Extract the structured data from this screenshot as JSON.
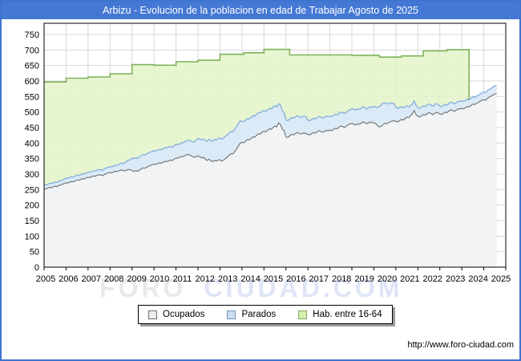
{
  "title_bar": {
    "text": "Arbizu - Evolucion de la poblacion en edad de Trabajar Agosto de 2025",
    "bg_color": "#4478d4",
    "text_color": "#ffffff"
  },
  "watermark": {
    "part1": "FORO",
    "part2": "CIUDAD.COM"
  },
  "footer": {
    "url": "http://www.foro-ciudad.com"
  },
  "legend": {
    "items": [
      {
        "label": "Ocupados",
        "fill": "#ececec",
        "border": "#707070"
      },
      {
        "label": "Parados",
        "fill": "#c9def2",
        "border": "#7a93ae"
      },
      {
        "label": "Hab. entre 16-64",
        "fill": "#d6f0ad",
        "border": "#84a969"
      }
    ]
  },
  "chart_data": {
    "type": "area",
    "title": "Arbizu - Evolucion de la poblacion en edad de Trabajar Agosto de 2025",
    "xlabel": "",
    "ylabel": "",
    "x_axis": {
      "labels": [
        "2005",
        "2006",
        "2007",
        "2008",
        "2009",
        "2010",
        "2011",
        "2012",
        "2013",
        "2014",
        "2015",
        "2016",
        "2017",
        "2018",
        "2019",
        "2020",
        "2021",
        "2022",
        "2023",
        "2024",
        "2025"
      ],
      "range": [
        2005,
        2026
      ]
    },
    "y_axis": {
      "min": 0,
      "max": 750,
      "step": 50,
      "tick_labels": [
        "0",
        "50",
        "100",
        "150",
        "200",
        "250",
        "300",
        "350",
        "400",
        "450",
        "500",
        "550",
        "600",
        "650",
        "700",
        "750"
      ]
    },
    "grid": true,
    "grid_color": "#d8d8d8",
    "legend_position": "bottom",
    "series": [
      {
        "name": "Hab. entre 16-64",
        "render": "step",
        "line_color": "#7fb25c",
        "fill_color": "#e3f5c9",
        "note": "annual padron step values, series ends April 2024",
        "steps": [
          [
            2005.0,
            597
          ],
          [
            2006.0,
            609
          ],
          [
            2007.0,
            613
          ],
          [
            2008.0,
            623
          ],
          [
            2009.0,
            653
          ],
          [
            2010.0,
            651
          ],
          [
            2011.0,
            662
          ],
          [
            2012.0,
            667
          ],
          [
            2013.0,
            686
          ],
          [
            2014.08,
            691
          ],
          [
            2015.0,
            702
          ],
          [
            2016.17,
            684
          ],
          [
            2019.0,
            683
          ],
          [
            2020.25,
            677
          ],
          [
            2021.25,
            681
          ],
          [
            2022.25,
            697
          ],
          [
            2023.33,
            701
          ],
          [
            2024.33,
            701
          ]
        ]
      },
      {
        "name": "Parados",
        "render": "monthly",
        "note": "line is Ocupados+Parados (stacked top of unemployment band), monthly Jan 2005 - Aug 2025",
        "line_color": "#8ab2de",
        "fill_color": "#d9e8f8",
        "start_year": 2005,
        "values": [
          266,
          265,
          267,
          270,
          270,
          272,
          274,
          273,
          277,
          278,
          281,
          284,
          287,
          286,
          290,
          291,
          290,
          294,
          297,
          295,
          298,
          301,
          300,
          304,
          306,
          306,
          308,
          310,
          310,
          313,
          315,
          314,
          312,
          317,
          320,
          322,
          324,
          323,
          326,
          329,
          328,
          332,
          335,
          335,
          336,
          341,
          345,
          345,
          352,
          350,
          353,
          351,
          356,
          359,
          363,
          361,
          365,
          368,
          371,
          373,
          375,
          375,
          377,
          380,
          378,
          382,
          386,
          384,
          388,
          389,
          387,
          392,
          396,
          395,
          397,
          401,
          401,
          405,
          409,
          408,
          407,
          404,
          404,
          409,
          414,
          413,
          410,
          413,
          408,
          406,
          412,
          408,
          406,
          412,
          410,
          414,
          416,
          413,
          417,
          422,
          427,
          432,
          438,
          436,
          444,
          452,
          462,
          472,
          470,
          469,
          474,
          479,
          478,
          483,
          488,
          487,
          493,
          498,
          497,
          503,
          504,
          502,
          507,
          512,
          510,
          516,
          520,
          517,
          527,
          522,
          505,
          498,
          475,
          472,
          477,
          482,
          480,
          484,
          488,
          486,
          483,
          485,
          487,
          484,
          474,
          472,
          476,
          480,
          478,
          482,
          486,
          484,
          481,
          483,
          487,
          486,
          487,
          485,
          489,
          493,
          491,
          496,
          500,
          498,
          495,
          500,
          504,
          507,
          511,
          509,
          506,
          510,
          508,
          512,
          517,
          515,
          510,
          513,
          517,
          515,
          518,
          517,
          514,
          518,
          522,
          529,
          530,
          526,
          528,
          529,
          529,
          527,
          515,
          512,
          515,
          517,
          514,
          517,
          520,
          516,
          520,
          525,
          536,
          522,
          515,
          512,
          516,
          520,
          518,
          522,
          526,
          524,
          519,
          523,
          527,
          525,
          519,
          517,
          521,
          525,
          522,
          528,
          532,
          530,
          526,
          530,
          534,
          535,
          536,
          534,
          537,
          542,
          539,
          544,
          550,
          547,
          551,
          554,
          558,
          562,
          565,
          563,
          569,
          573,
          576,
          581,
          584,
          586
        ]
      },
      {
        "name": "Ocupados",
        "render": "monthly",
        "note": "monthly Jan 2005 - Aug 2025",
        "line_color": "#6f6f6f",
        "fill_color": "#f3f3f3",
        "start_year": 2005,
        "values": [
          253,
          252,
          255,
          257,
          256,
          259,
          261,
          260,
          263,
          265,
          267,
          270,
          272,
          271,
          274,
          276,
          275,
          278,
          281,
          280,
          283,
          285,
          284,
          288,
          290,
          289,
          292,
          294,
          293,
          296,
          298,
          297,
          295,
          299,
          302,
          304,
          305,
          304,
          307,
          309,
          308,
          311,
          313,
          312,
          310,
          313,
          315,
          314,
          312,
          308,
          311,
          309,
          313,
          316,
          320,
          319,
          322,
          325,
          328,
          330,
          332,
          331,
          334,
          336,
          335,
          338,
          341,
          340,
          343,
          345,
          344,
          348,
          352,
          351,
          354,
          357,
          356,
          360,
          363,
          362,
          360,
          356,
          354,
          357,
          358,
          356,
          352,
          354,
          348,
          344,
          348,
          343,
          340,
          344,
          342,
          345,
          346,
          342,
          345,
          350,
          355,
          360,
          366,
          365,
          372,
          380,
          390,
          400,
          402,
          401,
          406,
          411,
          410,
          415,
          420,
          419,
          425,
          430,
          429,
          435,
          438,
          436,
          441,
          446,
          444,
          450,
          455,
          452,
          465,
          460,
          445,
          440,
          420,
          418,
          423,
          428,
          426,
          430,
          434,
          432,
          429,
          431,
          433,
          430,
          428,
          426,
          430,
          434,
          432,
          436,
          440,
          438,
          435,
          437,
          441,
          440,
          442,
          440,
          444,
          448,
          446,
          451,
          455,
          453,
          450,
          455,
          459,
          462,
          463,
          461,
          458,
          462,
          460,
          464,
          468,
          466,
          462,
          465,
          468,
          466,
          465,
          463,
          456,
          452,
          454,
          459,
          464,
          462,
          466,
          469,
          471,
          472,
          470,
          468,
          472,
          476,
          474,
          479,
          484,
          482,
          488,
          494,
          505,
          492,
          487,
          484,
          488,
          492,
          490,
          494,
          498,
          496,
          492,
          495,
          499,
          497,
          494,
          492,
          496,
          500,
          498,
          503,
          507,
          505,
          502,
          506,
          510,
          510,
          512,
          510,
          514,
          518,
          516,
          521,
          526,
          524,
          528,
          531,
          535,
          538,
          540,
          538,
          544,
          548,
          551,
          555,
          558,
          560
        ]
      }
    ]
  }
}
